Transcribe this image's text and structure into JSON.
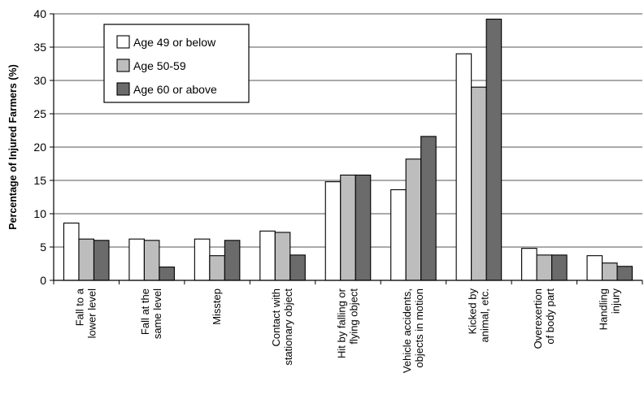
{
  "chart_data": {
    "type": "bar",
    "title": "",
    "xlabel": "",
    "ylabel": "Percentage of Injured Farmers (%)",
    "ylim": [
      0,
      40
    ],
    "yticks": [
      "0",
      "5",
      "10",
      "15",
      "20",
      "25",
      "30",
      "35",
      "40"
    ],
    "grid": true,
    "legend_position": "top-left",
    "categories": [
      [
        "Fall to a",
        "lower level"
      ],
      [
        "Fall at the",
        "same level"
      ],
      [
        "Misstep"
      ],
      [
        "Contact with",
        "stationary object"
      ],
      [
        "Hit by falling or",
        "flying object"
      ],
      [
        "Vehicle accidents,",
        "objects in motion"
      ],
      [
        "Kicked by",
        "animal, etc."
      ],
      [
        "Overexertion",
        "of body part"
      ],
      [
        "Handling",
        "injury"
      ]
    ],
    "series": [
      {
        "name": "Age 49 or below",
        "color": "#ffffff",
        "values": [
          8.6,
          6.2,
          6.2,
          7.4,
          14.8,
          13.6,
          34.0,
          4.8,
          3.7
        ]
      },
      {
        "name": "Age 50-59",
        "color": "#bdbdbd",
        "values": [
          6.2,
          6.0,
          3.7,
          7.2,
          15.8,
          18.2,
          29.0,
          3.8,
          2.6
        ]
      },
      {
        "name": "Age 60 or above",
        "color": "#6b6b6b",
        "values": [
          6.0,
          2.0,
          6.0,
          3.8,
          15.8,
          21.6,
          39.2,
          3.8,
          2.1
        ]
      }
    ]
  }
}
